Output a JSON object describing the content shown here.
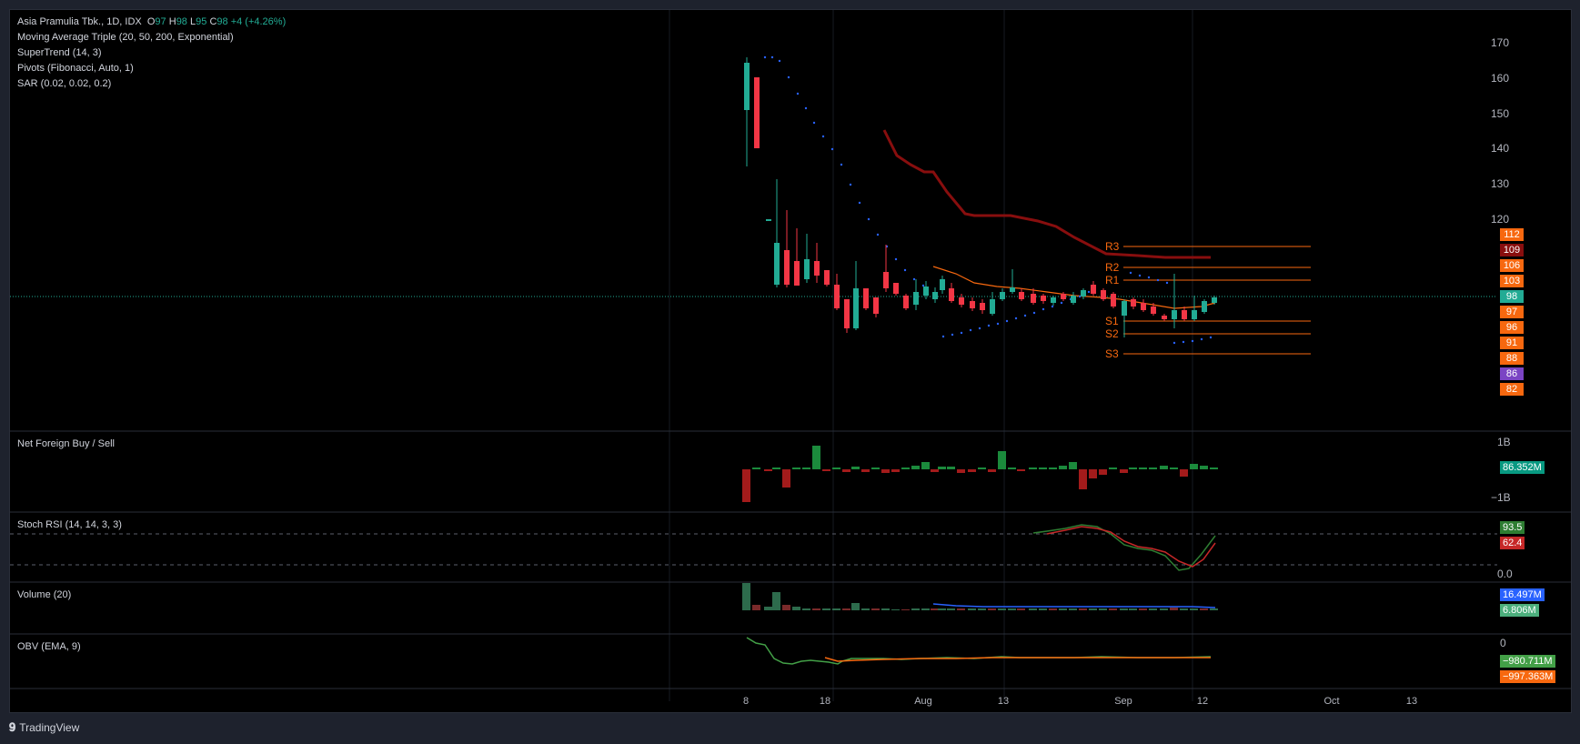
{
  "symbol": {
    "name": "Asia Pramulia Tbk., 1D, IDX",
    "o_label": "O",
    "o_value": "97",
    "h_label": "H",
    "h_value": "98",
    "l_label": "L",
    "l_value": "95",
    "c_label": "C",
    "c_value": "98",
    "change": "+4 (+4.26%)"
  },
  "indicators": [
    "Moving Average Triple (20, 50, 200, Exponential)",
    "SuperTrend (14, 3)",
    "Pivots (Fibonacci, Auto, 1)",
    "SAR (0.02, 0.02, 0.2)"
  ],
  "price_axis": {
    "ticks": [
      "170",
      "160",
      "150",
      "140",
      "130",
      "120"
    ],
    "tags": [
      {
        "text": "112",
        "color": "#f7680f"
      },
      {
        "text": "109",
        "color": "#880e0e"
      },
      {
        "text": "106",
        "color": "#f7680f"
      },
      {
        "text": "103",
        "color": "#f7680f"
      },
      {
        "text": "98",
        "color": "#22ab94"
      },
      {
        "text": "97",
        "color": "#f7680f"
      },
      {
        "text": "96",
        "color": "#f7680f"
      },
      {
        "text": "91",
        "color": "#f7680f"
      },
      {
        "text": "88",
        "color": "#f7680f"
      },
      {
        "text": "86",
        "color": "#7b44c4"
      },
      {
        "text": "82",
        "color": "#f7680f"
      }
    ]
  },
  "pivots": [
    "R3",
    "R2",
    "R1",
    "S1",
    "S2",
    "S3"
  ],
  "panes": {
    "foreign": {
      "label": "Net Foreign Buy / Sell",
      "tick_top": "1B",
      "tick_bottom": "−1B",
      "value": "86.352M",
      "value_color": "#089981"
    },
    "stoch": {
      "label": "Stoch RSI (14, 14, 3, 3)",
      "tick": "0.0",
      "k_value": "93.5",
      "k_color": "#2e7d32",
      "d_value": "62.4",
      "d_color": "#c62828"
    },
    "volume": {
      "label": "Volume (20)",
      "vol_value": "16.497M",
      "vol_color": "#2962ff",
      "ma_value": "6.806M",
      "ma_color": "#4caf7d"
    },
    "obv": {
      "label": "OBV (EMA, 9)",
      "tick": "0",
      "obv_value": "−980.711M",
      "obv_color": "#43a047",
      "ema_value": "−997.363M",
      "ema_color": "#f7680f"
    }
  },
  "time_axis": [
    "8",
    "18",
    "Aug",
    "13",
    "Sep",
    "12",
    "Oct",
    "13"
  ],
  "footer": {
    "brand": "TradingView"
  },
  "colors": {
    "up": "#22ab94",
    "down": "#f23645",
    "supertrend": "#880e0e",
    "ema": "#f7680f",
    "sar": "#2962ff"
  }
}
